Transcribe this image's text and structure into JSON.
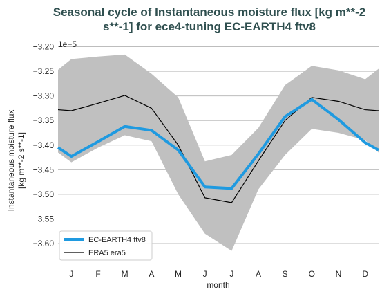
{
  "chart_data": {
    "type": "line",
    "title_lines": [
      "Seasonal cycle of Instantaneous moisture flux [kg m**-2",
      "s**-1] for ece4-tuning EC-EARTH4 ftv8"
    ],
    "xlabel": "month",
    "ylabel_lines": [
      "Instantaneous moisture flux",
      "[kg m**-2 s**-1]"
    ],
    "offset_text": "1e−5",
    "categories": [
      "J",
      "F",
      "M",
      "A",
      "M",
      "J",
      "J",
      "A",
      "S",
      "O",
      "N",
      "D"
    ],
    "x": [
      0.5,
      1.5,
      2.5,
      3.5,
      4.5,
      5.5,
      6.5,
      7.5,
      8.5,
      9.5,
      10.5,
      11.5
    ],
    "xlim": [
      0,
      12
    ],
    "ylim": [
      -3.645,
      -3.195
    ],
    "yticks": [
      -3.2,
      -3.25,
      -3.3,
      -3.35,
      -3.4,
      -3.45,
      -3.5,
      -3.55,
      -3.6
    ],
    "ytick_labels": [
      "−3.20",
      "−3.25",
      "−3.30",
      "−3.35",
      "−3.40",
      "−3.45",
      "−3.50",
      "−3.55",
      "−3.60"
    ],
    "grid": true,
    "legend_position": "bottom-left",
    "wrap": {
      "first": {
        "x": 0,
        "ec": -3.405,
        "era": -3.328,
        "lo": -3.415,
        "hi": -3.247
      },
      "last": {
        "x": 12,
        "ec": -3.41,
        "era": -3.33,
        "lo": -3.415,
        "hi": -3.245
      }
    },
    "band": {
      "upper": [
        -3.225,
        -3.22,
        -3.216,
        -3.255,
        -3.303,
        -3.433,
        -3.42,
        -3.365,
        -3.278,
        -3.239,
        -3.248,
        -3.266
      ],
      "lower": [
        -3.435,
        -3.405,
        -3.38,
        -3.392,
        -3.5,
        -3.58,
        -3.615,
        -3.49,
        -3.42,
        -3.367,
        -3.375,
        -3.39
      ],
      "color": "#c0c0c0"
    },
    "series": [
      {
        "name": "EC-EARTH4 ftv8",
        "values": [
          -3.423,
          -3.393,
          -3.362,
          -3.37,
          -3.41,
          -3.485,
          -3.488,
          -3.418,
          -3.342,
          -3.307,
          -3.348,
          -3.395
        ],
        "color": "#1f9ae0"
      },
      {
        "name": "ERA5 era5",
        "values": [
          -3.33,
          -3.315,
          -3.299,
          -3.325,
          -3.4,
          -3.507,
          -3.517,
          -3.432,
          -3.35,
          -3.303,
          -3.311,
          -3.328
        ],
        "color": "#000000"
      }
    ]
  }
}
